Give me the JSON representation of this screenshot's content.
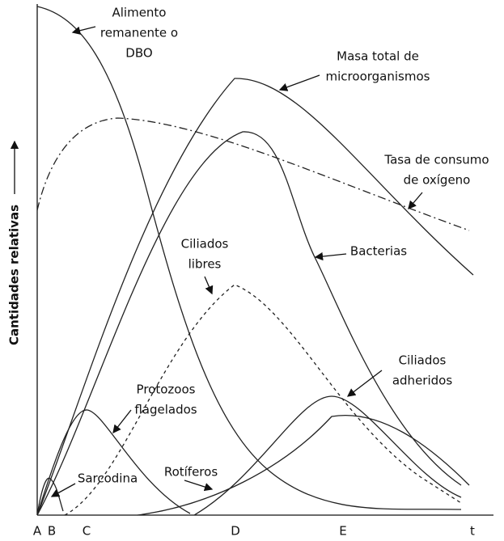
{
  "axis": {
    "y_label": "Cantidades relativas",
    "x_labels": [
      "A",
      "B",
      "C",
      "D",
      "E",
      "t"
    ]
  },
  "curves": [
    {
      "label_lines": [
        "Alimento",
        "remanente o",
        "DBO"
      ]
    },
    {
      "label_lines": [
        "Masa total de",
        "microorganismos"
      ]
    },
    {
      "label_lines": [
        "Tasa de consumo",
        "de oxígeno"
      ]
    },
    {
      "label_lines": [
        "Ciliados",
        "libres"
      ]
    },
    {
      "label_lines": [
        "Bacterias"
      ]
    },
    {
      "label_lines": [
        "Ciliados",
        "adheridos"
      ]
    },
    {
      "label_lines": [
        "Protozoos",
        "flagelados"
      ]
    },
    {
      "label_lines": [
        "Sarcodina"
      ]
    },
    {
      "label_lines": [
        "Rotíferos"
      ]
    }
  ]
}
